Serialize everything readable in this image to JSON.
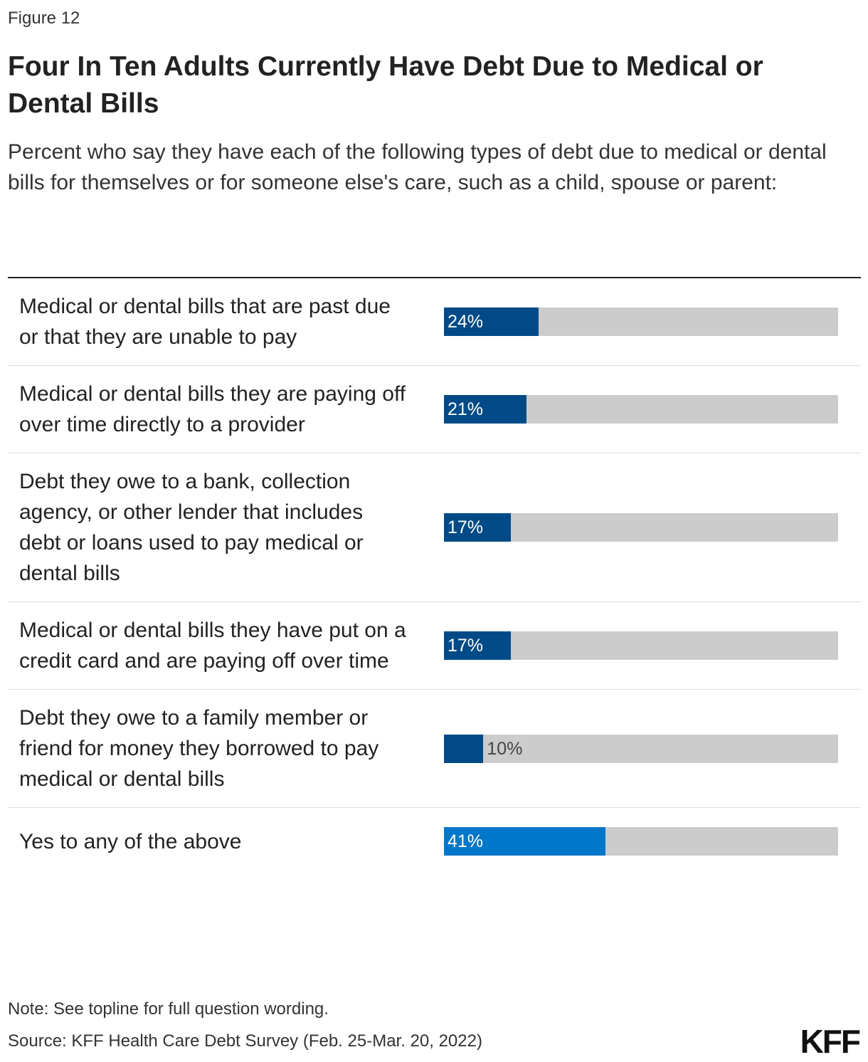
{
  "figure_label": "Figure 12",
  "chart_data": {
    "type": "bar",
    "orientation": "horizontal",
    "title": "Four In Ten Adults Currently Have Debt Due to Medical or Dental Bills",
    "subtitle": "Percent who say they have each of the following types of debt due to medical or dental bills for themselves or for someone else's care, such as a child, spouse or parent:",
    "categories": [
      "Medical or dental bills that are past due or that they are unable to pay",
      "Medical or dental bills they are paying off over time directly to a provider",
      "Debt they owe to a bank, collection agency, or other lender that includes debt or loans used to pay medical or dental bills",
      "Medical or dental bills they have put on a credit card and are paying off over time",
      "Debt they owe to a family member or friend for money they borrowed to pay medical or dental bills",
      "Yes to any of the above"
    ],
    "values": [
      24,
      21,
      17,
      17,
      10,
      41
    ],
    "value_labels": [
      "24%",
      "21%",
      "17%",
      "17%",
      "10%",
      "41%"
    ],
    "colors": [
      "#004b87",
      "#004b87",
      "#004b87",
      "#004b87",
      "#004b87",
      "#0077c8"
    ],
    "track_color": "#cccccc",
    "xlim": [
      0,
      100
    ]
  },
  "note": "Note: See topline for full question wording.",
  "source": "Source: KFF Health Care Debt Survey (Feb. 25-Mar. 20, 2022)",
  "logo": "KFF"
}
